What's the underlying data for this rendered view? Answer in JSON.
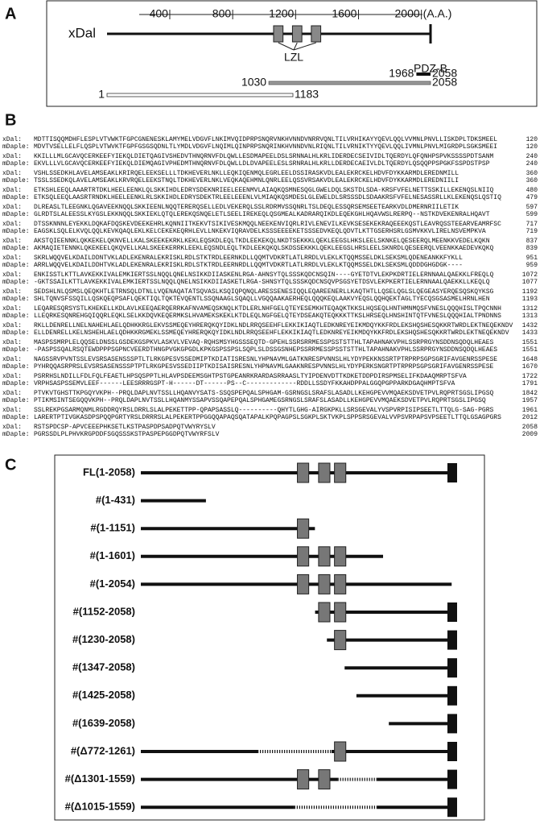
{
  "panel_a": {
    "label": "A",
    "protein": "xDal",
    "ticks": [
      400,
      800,
      1200,
      1600,
      2000
    ],
    "unit": "(A.A.)",
    "domain_label": "LZL",
    "end_label": "PDZ-B",
    "fragments": [
      {
        "start": 1968,
        "end": 2058
      },
      {
        "start": 1030,
        "end": 2058
      },
      {
        "start": 1,
        "end": 1183
      }
    ]
  },
  "panel_b": {
    "label": "B",
    "names": [
      "xDal:",
      "mDaple:"
    ],
    "blocks": [
      {
        "rows": [
          "MDTTISQQMDHFLESPLVTVWKTFGPCGNENESKLAMYMELVDGVFLNKIMVQIDPRPSNQRVNKHVNNDVNRRVQNLTILVRHIKAYYQEVLQQLVVMNLPNVLLISKDPLTDKSMEEL",
          "MDVTVSELLELFLQSPLVTWVKTFGPFGSGSQDNLTLYMDLVDGVFLNQIMLQINPRPSNQRINKHVNNDVNLRIQNLTILVRNIKTYYQEVLQQLIVMNLPNVLMIGRDPLSGKSMEEI"
        ],
        "ends": [
          120,
          120
        ]
      },
      {
        "rows": [
          "KKILLLMLGCAVQCERKEEFYIEKQLDIETQAGIVSHEDVTHNQRNVFDLQWLLESDMAPEELDSLSRNNALHLKRLIDERDECSEIVIDLTQERDYLQFQNHPSPVKSSSSPDTSANM",
          "EKVLLLVLGCAVQCERKEEFYIEKQLDIEMQAGIVPHEDMTHNQRNVFDLQWLLDLDVAPEELESLSRNRALHLKRLLDERDECAEIVLDLTQERDYLQSQQPPSPGKFSSPDSTPSP"
        ],
        "ends": [
          240,
          240
        ]
      },
      {
        "rows": [
          "VSHLSSEDKHLAVELAMSEAKLKRIRQELEEKSELLLTDKHEVERLNKLLEQKIQENMQLEGRLEELDSSIRASKVDLEALEKRCKELHDVFDYKKARMDLEREDNMILL",
          "TSSLSSEDKQLAVELAMSEAKLKRVRQELEEKSTNQLTDKHEVERLNKLVEQKAQEHMNLQNRLEELQSSVRSAKVDLEALEKRCKELHDVFDYKKARMDLEREDNIILI"
        ],
        "ends": [
          360,
          360
        ]
      },
      {
        "rows": [
          "ETKSHLEEQLAAARTRTDKLHEELEENKLQLSKKIHDLEDRYSDEKNRIEELEEENMVLAIAQKQSMNESQGLGWELDQLSKSTDLSDA-KRSFVFELNETTSSKILLEKENQSLNIIQ",
          "ETKSQLEEQLAASRTRNDKLHEELEENKLRLSKKIHDLEDRYSDEKTRLEELEEENLVLMIAQKQSMDESLGLEWELDLSRSSSDLSDAAKRSFVFELNESASSRLLKLEKENQSLQSTIQ"
        ],
        "ends": [
          480,
          479
        ]
      },
      {
        "rows": [
          "DLREASLTLEEGNKLQGAVEEKNQQLSKKIEENLNQQTERERQSELLEDLVEKERQLSSLRDRMVSSQNRLTSLDEQLESSQRSEMSEETEARKVDLDMERNRIILETIK",
          "GLRDTSLALEESSLKYGSLEKKNQQLSKKIEKLQTQLEREKQSNQELETLSEELIREKEQLQSGMEALKADRARQIKDLEQEKGHLHQAVWSLRERPQ--NSTKDVEKENRALHQAVT"
        ],
        "ends": [
          597,
          599
        ]
      },
      {
        "rows": [
          "DTSSKNNNLEYEKKLDQKAFDQSKEVDEEKEHRLKQNNIITKEKVTSIKIVESKMQQLNEEKENVIQRLRIVLENEVILKEVKSESEKEKRAQEEEKQSTLEAVRQSSTEEARVEAMRFSC",
          "EAGSKLSQLELKVQLQQLKEVKQAQLEKLKELCEKEKEQRHLEVLLNKEKVIQRAVDELKSSSEEEEKETSSSEDVKEQLQDVTLKTTGSERHSRLGSMVKKVLIRELNSVEMPKVA"
        ],
        "ends": [
          717,
          719
        ]
      },
      {
        "rows": [
          "AKSTQIEENNKLQKKEKELQKNVELLKALSKEEKEKRKLKEKLEQSKDLEQLTKDLEEKEKQLNKDTSEKKKLQEKLEEGSLHKSLEELSKNKELQESEERQLMEENKKVEDELKQKN",
          "AKMAQIETENNKLQKEKEELQKQVELLKALSKEEKERRKLEEKLEQSNDLEQLTKDLEEKQKQLSKDSSEKKKLQEKLEEGSLHRSLEELSKNRDLQESEERQLVEENKKAEDEVKQKQ"
        ],
        "ends": [
          837,
          839
        ]
      },
      {
        "rows": [
          "SKRLWQQVELKDAILDDNTVKLADLEKENRALEKRISKLRDLSTKTRDLEERNKDLLQQMTVDKRTLATLRRDLVLEKLKTQQMSSELDKLSEKSMLQDENEANKKFYKLL",
          "ARRLWQQVELKDAILDDHTVKLADLEKENRALEKRISKLRDLSTKTRDLEERNRDLLQQMTVDKRTLATLRRDLVLEKLKTQQMSSELDKLSEKSMLQDDDGHGDGK----"
        ],
        "ends": [
          951,
          959
        ]
      },
      {
        "rows": [
          "ENKISSTLKTTLAVKEKKIVALEMKIERTSSLNQQLQNELNSIKKDIIASKENLRGA-AHNSYTQLSSSKQDCNSQIN----GYETDTVLEKPKDRTIELERNNAALQAEKKLFREQLQ",
          "-GKTSSAILKTTLAVKEKKIVALEMKIERTSSLNQQLQNELNSIKKDIIASKETLRGA-SHNSYTQLSSSKQDCNSQVPSGSYETDSVLEKPKERTIELERNNAALQAEKKLLKEQLQ"
        ],
        "ends": [
          1072,
          1077
        ]
      },
      {
        "rows": [
          "SEDSHLNLQSMSLQEQKHTLETRNSQLDTNLLVQENAQATATSQVASLKSQIQPQNQLARESSENESIQQLEQAREENERLLKAQTHTLLQSELQGLSLQEGEASYERQESQSKQYKSG",
          "SHLTQNVSFSSQILLQSKQEQPSAFLQEKTIQLTQKTEVQENTLSSQNAAGLSQAQLLVGQQAAKAERHEQLQQQKEQLAAKVYEQSLQQHQEKTAGLTYECQSGSASMELHRNLHEN"
        ],
        "ends": [
          1192,
          1193
        ]
      },
      {
        "rows": [
          "LEQARESQRSYSTLKHEKELLKDLAVLKEEQAERQERRKAFNVAMEQSKNQLKTDLERLNHFGELQTEYESEMKHTEQAQKTKKSLHQSEQLHNTHMNMQSFVNESLQQQHISLTPQCNNH",
          "LLEQRKESQNREHGQIQQRLEQKLSELKKDQVKEQERMKSLHVAMEKSKEKLKTDLEQLNGFGELQTEYDSEAKQTEQKKKTTKSLHRSEQLHNSHINTQTFVNESLQQQHIALTPNDNNS"
        ],
        "ends": [
          1312,
          1313
        ]
      },
      {
        "rows": [
          "RKLLDENRELLNELNAHEHLAELQDHKKRGLEKVSSMEQEYHRERQKQYIDKLNDLRRQSEEHFLEKKIKIAQTLEDKNREYEIKMDQYKKFRDLEKSHQSHESQKKRTWRDLEKTNEQEKNDV",
          "ELLDENRELLKELNSHEHLAELQDHKKRGMEKLSSMEQEYHRERQKQYIDKLNDLRRQSEEHFLEKKIKIAQTLEDKNREYEIKMDQYKKFRDLEKSHQSHESQKKRTWRDLEKTNEQEKNDV"
        ],
        "ends": [
          1432,
          1433
        ]
      },
      {
        "rows": [
          "MASPSSMRPLELQQSELDNSSLGSDEKGSPKVLASKVLVEVAQ-RQHSMSYHGSSSEQTD-GPEHLSSRSRRMESSPSSTSTTHLTAPAHNAKVPHLSSRPRGYNSDDNSQDQLHEAES",
          "-PASPSSQALRSQTEWDPPPSGPNCVEERDTHNGPVGKGPGDLKPKGSPSSPSLSQPLSLDSSGSNHEPSSRRMESSPSSTSTTHLTAPAHNAKVPHLSSRPRGYNSDDNSQDQLHEAES"
        ],
        "ends": [
          1551,
          1551
        ]
      },
      {
        "rows": [
          "NAGSSRVPVNTSSLEVSRSASENSSSPTLTLRKGPESVSSEDMIPTKDIATISRESNLYHPNAVMLGATKNRESPVNNSLHLYDYPEKKNSSRTPTRPRPSGPSGRIFAVGENRSSPESE",
          "PYHRQQASRPRSLEVSRSASENSSSPTPTLRKGPESVSSEDIIPTKDISAISRESNLYHPNAVMLGAAKNRESPVNNSLHLYDYPERKSNGRTPTRPRPSGPSGRIFAVGENRSSPESE"
        ],
        "ends": [
          1648,
          1670
        ]
      },
      {
        "rows": [
          "PSRRHSLNDILLFDLFQLFEAETLHPSQSPPTLHLAVPSDEEMSGHTPSTGPEANRKRARDASRRAASLTYIPDENVDTTKDKETDDPDIRSPMSELIFKDAAQMRPTSFVA",
          "VRPHSASPSSEMVLEEF------LEESRRRGSPT-H------DT------PS--C-------------RDDLLSSDYFKKAHDPPALGGQPGPPARKDGAQHMPTSFVA"
        ],
        "ends": [
          1722,
          1791
        ]
      },
      {
        "rows": [
          "PTVKVTGHSTTKPGQYVKPH--PRQLDAPLNVTSSLLHQANVYSATS-SSQSPEPQALSPHGAM-GSRNGSLSRAFSLASADLLKEHGPEVVMQAEKSDVETPVLRQPRTSGSLIPGSQ",
          "PTIKMSINTSEGQQVKPH--PRQLDAPLNVTSSLLHQANMYSSAPVSSQAPEPQALSPHGAMEGSRNGSLSRAFSLASADLLKEHGPEVVMQAEKSDVETPVLRQPRTSGSLIPGSQ"
        ],
        "ends": [
          1842,
          1957
        ]
      },
      {
        "rows": [
          "SSLREKPGSARMQNMLRGDDRQYRSLDRRLSLALPEKETTPP-QPAPSASSLQ----------QHYTLGHG-AIRGKPKLLSRSGEVALYVSPVRPISIPSEETLTTQLG-SAG-PGRS",
          "LARERTPTIVGKASDPSPQQPGRTYRSLDRRRSLALPEKERTPPGGQQAPAQSQATAPALKPQPAGPSLSGKPLSKTVKPLSPPSRSGEVALVVPSVRPAPSVPSEETLTTQLGSAGPGRS"
        ],
        "ends": [
          1961,
          2012
        ]
      },
      {
        "rows": [
          "RSTSPDCSP-APVCEEEPHKSETLKSTPASPDPSADPQTVWYRYSLV",
          "PGRSSDLPLPHVKRGPDDFSGQSSSKSTPASPEPGGDPQTVWYRFSLV"
        ],
        "ends": [
          2058,
          2009
        ]
      }
    ]
  },
  "panel_c": {
    "label": "C",
    "constructs": [
      {
        "label": "FL(1-2058)",
        "start": 1,
        "end": 2058
      },
      {
        "label": "#(1-431)",
        "start": 1,
        "end": 431
      },
      {
        "label": "#(1-1151)",
        "start": 1,
        "end": 1151
      },
      {
        "label": "#(1-1601)",
        "start": 1,
        "end": 1601
      },
      {
        "label": "#(1-2054)",
        "start": 1,
        "end": 2054
      },
      {
        "label": "#(1152-2058)",
        "start": 1152,
        "end": 2058
      },
      {
        "label": "#(1230-2058)",
        "start": 1230,
        "end": 2058
      },
      {
        "label": "#(1347-2058)",
        "start": 1347,
        "end": 2058
      },
      {
        "label": "#(1425-2058)",
        "start": 1425,
        "end": 2058
      },
      {
        "label": "#(1639-2058)",
        "start": 1639,
        "end": 2058
      },
      {
        "label": "#(Δ772-1261)",
        "start": 1,
        "end": 2058,
        "deletion": [
          772,
          1261
        ]
      },
      {
        "label": "#(Δ1301-1559)",
        "start": 1,
        "end": 2058,
        "deletion": [
          1301,
          1559
        ]
      },
      {
        "label": "#(Δ1015-1559)",
        "start": 1,
        "end": 2058,
        "deletion": [
          1015,
          1559
        ]
      }
    ]
  }
}
